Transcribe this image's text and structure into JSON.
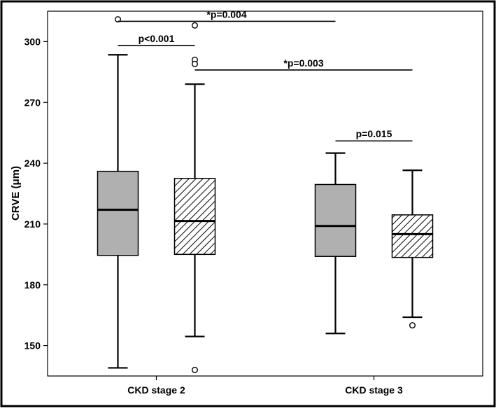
{
  "chart_data": {
    "type": "boxplot",
    "title": "",
    "xlabel": "",
    "ylabel": "CRVE (μm)",
    "ylim": [
      135,
      315
    ],
    "yticks": [
      150,
      180,
      210,
      240,
      270,
      300
    ],
    "grid": false,
    "legend": "none",
    "categories": [
      "CKD stage 2",
      "CKD stage 3"
    ],
    "boxes": [
      {
        "category": 0,
        "offset": -1,
        "fill": "solid",
        "whisker_low": 139,
        "q1": 194.5,
        "median": 217,
        "q3": 236,
        "whisker_high": 293.5,
        "outliers": [
          311
        ]
      },
      {
        "category": 0,
        "offset": 1,
        "fill": "hatched",
        "whisker_low": 154.5,
        "q1": 195,
        "median": 211.5,
        "q3": 232.5,
        "whisker_high": 279,
        "outliers": [
          308,
          291,
          289,
          138
        ]
      },
      {
        "category": 1,
        "offset": -1,
        "fill": "solid",
        "whisker_low": 156,
        "q1": 194,
        "median": 209,
        "q3": 229.5,
        "whisker_high": 245,
        "outliers": []
      },
      {
        "category": 1,
        "offset": 1,
        "fill": "hatched",
        "whisker_low": 164,
        "q1": 193.5,
        "median": 205,
        "q3": 214.5,
        "whisker_high": 236.5,
        "outliers": [
          160
        ]
      }
    ],
    "annotations": [
      {
        "text": "*p=0.004",
        "from_box": 0,
        "to_box": 2,
        "y": 310
      },
      {
        "text": "p<0.001",
        "from_box": 0,
        "to_box": 1,
        "y": 298
      },
      {
        "text": "*p=0.003",
        "from_box": 1,
        "to_box": 3,
        "y": 286
      },
      {
        "text": "p=0.015",
        "from_box": 2,
        "to_box": 3,
        "y": 251
      }
    ],
    "colors": {
      "box_fill": "#b0b0b0",
      "stroke": "#000000",
      "background": "#ffffff"
    }
  }
}
